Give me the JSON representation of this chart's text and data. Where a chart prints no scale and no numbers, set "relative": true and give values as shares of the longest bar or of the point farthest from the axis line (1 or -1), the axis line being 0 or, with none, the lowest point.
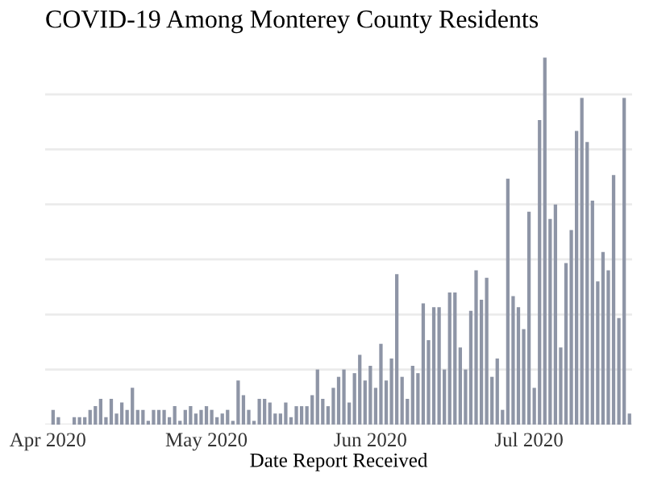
{
  "chart_data": {
    "type": "bar",
    "title": "COVID-19 Among Monterey County Residents",
    "xlabel": "Date Report Received",
    "relative": true,
    "grid": "y",
    "tick_labels": "x",
    "color": "#8e95a6",
    "x": [
      "2020-04-02",
      "2020-04-03",
      "2020-04-04",
      "2020-04-05",
      "2020-04-06",
      "2020-04-07",
      "2020-04-08",
      "2020-04-09",
      "2020-04-10",
      "2020-04-11",
      "2020-04-12",
      "2020-04-13",
      "2020-04-14",
      "2020-04-15",
      "2020-04-16",
      "2020-04-17",
      "2020-04-18",
      "2020-04-19",
      "2020-04-20",
      "2020-04-21",
      "2020-04-22",
      "2020-04-23",
      "2020-04-24",
      "2020-04-25",
      "2020-04-26",
      "2020-04-27",
      "2020-04-28",
      "2020-04-29",
      "2020-04-30",
      "2020-05-01",
      "2020-05-02",
      "2020-05-03",
      "2020-05-04",
      "2020-05-05",
      "2020-05-06",
      "2020-05-07",
      "2020-05-08",
      "2020-05-09",
      "2020-05-10",
      "2020-05-11",
      "2020-05-12",
      "2020-05-13",
      "2020-05-14",
      "2020-05-15",
      "2020-05-16",
      "2020-05-17",
      "2020-05-18",
      "2020-05-19",
      "2020-05-20",
      "2020-05-21",
      "2020-05-22",
      "2020-05-23",
      "2020-05-24",
      "2020-05-25",
      "2020-05-26",
      "2020-05-27",
      "2020-05-28",
      "2020-05-29",
      "2020-05-30",
      "2020-05-31",
      "2020-06-01",
      "2020-06-02",
      "2020-06-03",
      "2020-06-04",
      "2020-06-05",
      "2020-06-06",
      "2020-06-07",
      "2020-06-08",
      "2020-06-09",
      "2020-06-10",
      "2020-06-11",
      "2020-06-12",
      "2020-06-13",
      "2020-06-14",
      "2020-06-15",
      "2020-06-16",
      "2020-06-17",
      "2020-06-18",
      "2020-06-19",
      "2020-06-20",
      "2020-06-21",
      "2020-06-22",
      "2020-06-23",
      "2020-06-24",
      "2020-06-25",
      "2020-06-26",
      "2020-06-27",
      "2020-06-28",
      "2020-06-29",
      "2020-06-30",
      "2020-07-01",
      "2020-07-02",
      "2020-07-03",
      "2020-07-04",
      "2020-07-05",
      "2020-07-06",
      "2020-07-07",
      "2020-07-08",
      "2020-07-09",
      "2020-07-10",
      "2020-07-11",
      "2020-07-12",
      "2020-07-13",
      "2020-07-14",
      "2020-07-15",
      "2020-07-16",
      "2020-07-17",
      "2020-07-18",
      "2020-07-19",
      "2020-07-20"
    ],
    "values": [
      0.04,
      0.02,
      0,
      0,
      0.02,
      0.02,
      0.02,
      0.04,
      0.05,
      0.07,
      0.02,
      0.07,
      0.03,
      0.06,
      0.04,
      0.1,
      0.04,
      0.04,
      0.01,
      0.04,
      0.04,
      0.04,
      0.02,
      0.05,
      0.01,
      0.04,
      0.05,
      0.03,
      0.04,
      0.05,
      0.04,
      0.02,
      0.03,
      0.04,
      0.01,
      0.12,
      0.08,
      0.04,
      0.01,
      0.07,
      0.07,
      0.06,
      0.03,
      0.03,
      0.06,
      0.02,
      0.05,
      0.05,
      0.05,
      0.08,
      0.15,
      0.07,
      0.05,
      0.1,
      0.13,
      0.15,
      0.06,
      0.14,
      0.19,
      0.12,
      0.16,
      0.1,
      0.22,
      0.12,
      0.18,
      0.41,
      0.13,
      0.07,
      0.16,
      0.14,
      0.33,
      0.23,
      0.32,
      0.32,
      0.15,
      0.36,
      0.36,
      0.21,
      0.15,
      0.31,
      0.42,
      0.34,
      0.4,
      0.13,
      0.18,
      0.04,
      0.67,
      0.35,
      0.32,
      0.26,
      0.58,
      0.1,
      0.83,
      1,
      0.56,
      0.6,
      0.21,
      0.44,
      0.53,
      0.8,
      0.89,
      0.77,
      0.61,
      0.39,
      0.47,
      0.42,
      0.68,
      0.29,
      0.89,
      0.03
    ],
    "xlim": [
      "2020-03-31T12:00",
      "2020-07-20T12:00"
    ],
    "xticks": [
      {
        "value": "2020-04-01",
        "label": "Apr 2020"
      },
      {
        "value": "2020-05-01",
        "label": "May 2020"
      },
      {
        "value": "2020-06-01",
        "label": "Jun 2020"
      },
      {
        "value": "2020-07-01",
        "label": "Jul 2020"
      }
    ]
  }
}
